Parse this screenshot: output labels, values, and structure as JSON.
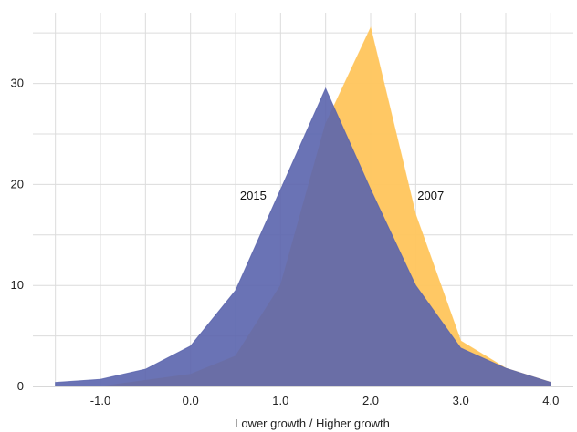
{
  "chart_data": {
    "type": "area",
    "title": "",
    "xlabel": "Lower growth / Higher growth",
    "ylabel": "",
    "x": [
      -1.5,
      -1.0,
      -0.5,
      0.0,
      0.5,
      1.0,
      1.5,
      2.0,
      2.5,
      3.0,
      3.5,
      4.0
    ],
    "xlim": [
      -1.75,
      4.25
    ],
    "ylim": [
      0,
      37
    ],
    "x_ticks": [
      -1.0,
      0.0,
      1.0,
      2.0,
      3.0,
      4.0
    ],
    "x_tick_labels": [
      "-1.0",
      "0.0",
      "1.0",
      "2.0",
      "3.0",
      "4.0"
    ],
    "y_ticks": [
      0,
      10,
      20,
      30
    ],
    "y_tick_labels": [
      "0",
      "10",
      "20",
      "30"
    ],
    "grid": true,
    "series": [
      {
        "label": "2007",
        "color": "#FFC55C",
        "values": [
          0,
          0,
          0.6,
          1.2,
          3.0,
          10.0,
          26.0,
          35.5,
          17.0,
          4.5,
          1.8,
          0.4
        ]
      },
      {
        "label": "2015",
        "color": "#5A64AD",
        "values": [
          0.4,
          0.7,
          1.7,
          4.0,
          9.5,
          19.5,
          29.5,
          19.5,
          10.0,
          3.8,
          1.8,
          0.4
        ]
      }
    ],
    "annotations": [
      {
        "text": "2015",
        "x": 0.55,
        "y": 18.5
      },
      {
        "text": "2007",
        "x": 2.52,
        "y": 18.5
      }
    ]
  }
}
